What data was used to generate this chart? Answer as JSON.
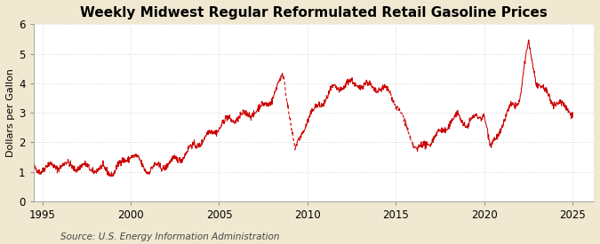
{
  "title": "Weekly Midwest Regular Reformulated Retail Gasoline Prices",
  "ylabel": "Dollars per Gallon",
  "source": "Source: U.S. Energy Information Administration",
  "outer_bg": "#f0e8d0",
  "plot_bg": "#ffffff",
  "line_color": "#cc0000",
  "grid_color": "#aaaaaa",
  "xlim": [
    1994.5,
    2026.2
  ],
  "ylim": [
    0,
    6
  ],
  "yticks": [
    0,
    1,
    2,
    3,
    4,
    5,
    6
  ],
  "xticks": [
    1995,
    2000,
    2005,
    2010,
    2015,
    2020,
    2025
  ],
  "title_fontsize": 11,
  "ylabel_fontsize": 8,
  "source_fontsize": 7.5,
  "tick_fontsize": 8.5,
  "gap1_start": 2008.65,
  "gap1_end": 2009.3,
  "gap2_start": 2014.7,
  "gap2_end": 2016.2
}
